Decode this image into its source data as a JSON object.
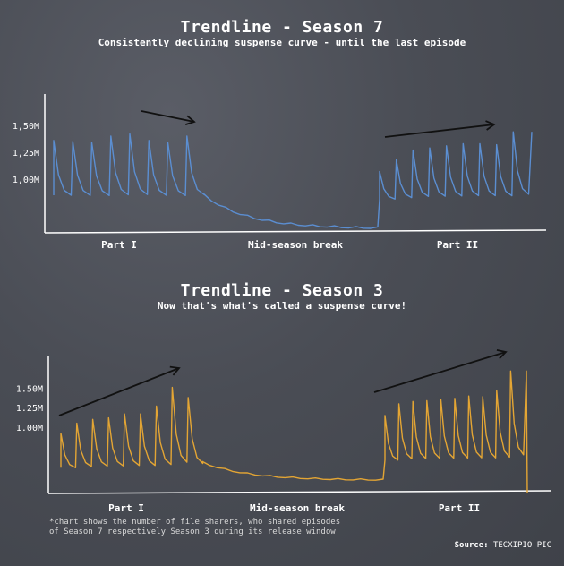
{
  "footnote_lines": [
    "*chart shows the number of file sharers, who shared episodes",
    "of Season 7 respectively Season 3 during its release window"
  ],
  "source": {
    "label": "Source:",
    "value": "TECXIPIO PIC"
  },
  "colors": {
    "season7": "#5b8ed1",
    "season3": "#e3a534",
    "axis": "#ffffff",
    "arrow": "#111111"
  },
  "chart_data": [
    {
      "type": "line",
      "title": "Trendline - Season 7",
      "subtitle": "Consistently declining suspense curve - until the last episode",
      "y_ticks": [
        {
          "label": "1,00M",
          "value": 1.0
        },
        {
          "label": "1,25M",
          "value": 1.25
        },
        {
          "label": "1,50M",
          "value": 1.5
        }
      ],
      "ylim": [
        0.5,
        1.75
      ],
      "categories": [
        "Part I",
        "Mid-season break",
        "Part II"
      ],
      "trend_arrows": [
        "Part I",
        "Part II"
      ],
      "series": [
        {
          "name": "",
          "peaks_part1": [
            1.36,
            1.35,
            1.34,
            1.4,
            1.42,
            1.36,
            1.34,
            1.4
          ],
          "peaks_part2": [
            1.07,
            1.18,
            1.27,
            1.29,
            1.31,
            1.33,
            1.33,
            1.32,
            1.44
          ],
          "break_start": 0.85,
          "break_end": 0.54
        }
      ]
    },
    {
      "type": "line",
      "title": "Trendline - Season 3",
      "subtitle": "Now that's what's called a suspense curve!",
      "y_ticks": [
        {
          "label": "1.00M",
          "value": 1.0
        },
        {
          "label": "1.25M",
          "value": 1.25
        },
        {
          "label": "1.50M",
          "value": 1.5
        }
      ],
      "ylim": [
        0.15,
        1.85
      ],
      "categories": [
        "Part I",
        "Mid-season break",
        "Part II"
      ],
      "trend_arrows": [
        "Part I",
        "Part II"
      ],
      "series": [
        {
          "name": "",
          "peaks_part1": [
            0.92,
            1.05,
            1.1,
            1.12,
            1.17,
            1.17,
            1.27,
            1.51,
            1.38
          ],
          "peaks_part2": [
            1.15,
            1.3,
            1.33,
            1.34,
            1.36,
            1.37,
            1.4,
            1.39,
            1.47,
            1.72
          ],
          "break_start": 0.55,
          "break_end": 0.32
        }
      ]
    }
  ]
}
